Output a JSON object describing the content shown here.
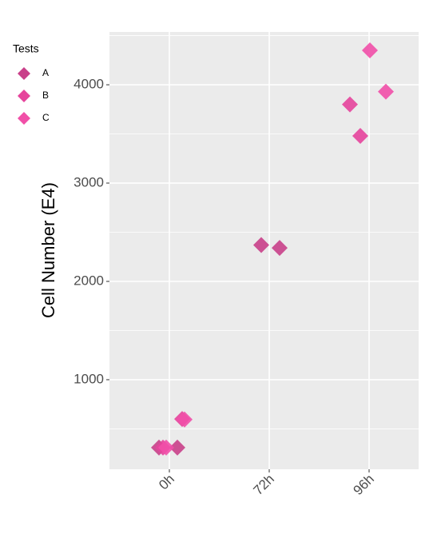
{
  "chart_data": {
    "type": "scatter",
    "y_label": "Cell Number (E4)",
    "legend_title": "Tests",
    "categories": [
      "0h",
      "72h",
      "96h"
    ],
    "ylim": [
      89,
      4537
    ],
    "yticks": [
      1000,
      2000,
      3000,
      4000
    ],
    "grid": true,
    "series": [
      {
        "name": "A",
        "color": "#c9408a",
        "x": [
          "0h",
          "0h",
          "72h",
          "72h"
        ],
        "values": [
          310,
          310,
          2370,
          2340
        ]
      },
      {
        "name": "B",
        "color": "#e6449c",
        "x": [
          "0h",
          "0h",
          "96h",
          "96h"
        ],
        "values": [
          310,
          600,
          3800,
          3480
        ]
      },
      {
        "name": "C",
        "color": "#f14fa8",
        "x": [
          "0h",
          "0h",
          "96h",
          "96h"
        ],
        "values": [
          310,
          595,
          4350,
          3930
        ]
      }
    ]
  }
}
